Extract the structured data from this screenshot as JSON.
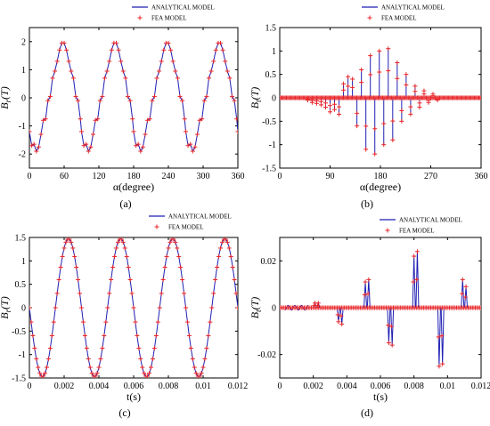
{
  "colors": {
    "analytical": "#1f1fb4",
    "fea": "#e8262a",
    "axis": "#000000",
    "background": "#ffffff"
  },
  "legend": {
    "analytical": "ANALYTICAL MODEL",
    "fea": "FEA MODEL"
  },
  "chart_data": [
    {
      "id": "a",
      "type": "line",
      "caption": "(a)",
      "xlabel": "α(degree)",
      "ylabel_main": "B",
      "ylabel_sub": "r",
      "ylabel_unit": "(T)",
      "xlim": [
        0,
        360
      ],
      "ylim": [
        -2.5,
        2.5
      ],
      "xticks": [
        0,
        60,
        120,
        180,
        240,
        300,
        360
      ],
      "xtick_labels": [
        "0",
        "60",
        "120",
        "180",
        "240",
        "300",
        "360"
      ],
      "yticks": [
        -2,
        -1,
        0,
        1,
        2
      ],
      "ytick_labels": [
        "-2",
        "-1",
        "0",
        "1",
        "2"
      ],
      "legend_position": "top-right",
      "series": [
        {
          "name": "ANALYTICAL MODEL",
          "style": "line",
          "period": 90,
          "x": [
            0,
            4,
            8,
            12,
            16,
            20,
            24,
            28,
            32,
            36,
            40,
            44,
            48,
            52,
            56,
            60,
            64,
            68,
            72,
            76,
            80,
            84,
            88
          ],
          "values": [
            -1.2,
            -1.7,
            -1.65,
            -1.9,
            -1.75,
            -1.3,
            -0.8,
            -0.75,
            -0.1,
            0.05,
            0.7,
            0.95,
            1.3,
            1.7,
            1.95,
            1.95,
            1.7,
            1.3,
            0.95,
            0.7,
            0.05,
            -0.1,
            -0.75
          ]
        },
        {
          "name": "FEA MODEL",
          "style": "marker",
          "period": 90,
          "x": [
            0,
            4,
            8,
            12,
            16,
            20,
            24,
            28,
            32,
            36,
            40,
            44,
            48,
            52,
            56,
            60,
            64,
            68,
            72,
            76,
            80,
            84,
            88
          ],
          "values": [
            -1.2,
            -1.7,
            -1.65,
            -1.9,
            -1.75,
            -1.3,
            -0.8,
            -0.75,
            -0.1,
            0.05,
            0.7,
            0.95,
            1.3,
            1.7,
            1.95,
            1.95,
            1.7,
            1.3,
            0.95,
            0.7,
            0.05,
            -0.1,
            -0.75
          ]
        }
      ]
    },
    {
      "id": "b",
      "type": "line",
      "caption": "(b)",
      "xlabel": "α(degree)",
      "ylabel_main": "B",
      "ylabel_sub": "t",
      "ylabel_unit": "(T)",
      "xlim": [
        0,
        360
      ],
      "ylim": [
        -1.5,
        1.5
      ],
      "xticks": [
        0,
        90,
        180,
        270,
        360
      ],
      "xtick_labels": [
        "0",
        "90",
        "180",
        "270",
        "360"
      ],
      "yticks": [
        -1.5,
        -1,
        -0.5,
        0,
        0.5,
        1,
        1.5
      ],
      "ytick_labels": [
        "-1.5",
        "-1",
        "-0.5",
        "0",
        "0.5",
        "1",
        "1.5"
      ],
      "legend_position": "top-right",
      "spikes": {
        "x": [
          50,
          58,
          66,
          74,
          82,
          90,
          98,
          106,
          114,
          122,
          130,
          138,
          146,
          154,
          162,
          170,
          178,
          186,
          194,
          202,
          210,
          218,
          226,
          234,
          242,
          250,
          258,
          266,
          274,
          282
        ],
        "values": [
          -0.05,
          -0.1,
          -0.12,
          -0.15,
          -0.2,
          -0.3,
          -0.25,
          -0.35,
          0.3,
          0.45,
          0.4,
          -0.6,
          0.6,
          -1.1,
          0.9,
          -1.2,
          1.0,
          -1.0,
          1.05,
          -0.9,
          0.75,
          -0.5,
          0.5,
          -0.35,
          0.25,
          -0.2,
          0.15,
          -0.1,
          0.08,
          -0.05
        ]
      },
      "series": [
        {
          "name": "ANALYTICAL MODEL",
          "style": "spikes"
        },
        {
          "name": "FEA MODEL",
          "style": "marker"
        }
      ]
    },
    {
      "id": "c",
      "type": "line",
      "caption": "(c)",
      "xlabel": "t(s)",
      "ylabel_main": "B",
      "ylabel_sub": "r",
      "ylabel_unit": "(T)",
      "xlim": [
        0,
        0.012
      ],
      "ylim": [
        -1.5,
        1.5
      ],
      "xticks": [
        0,
        0.002,
        0.004,
        0.006,
        0.008,
        0.01,
        0.012
      ],
      "xtick_labels": [
        "0",
        "0.002",
        "0.004",
        "0.006",
        "0.008",
        "0.01",
        "0.012"
      ],
      "yticks": [
        -1.5,
        -1,
        -0.5,
        0,
        0.5,
        1,
        1.5
      ],
      "ytick_labels": [
        "-1.5",
        "-1",
        "-0.5",
        "0",
        "0.5",
        "1",
        "1.5"
      ],
      "legend_position": "top-right",
      "sine": {
        "amplitude": 1.47,
        "period": 0.003,
        "phase_zero_value": 0.0,
        "starts_negative": true
      },
      "series": [
        {
          "name": "ANALYTICAL MODEL",
          "style": "line"
        },
        {
          "name": "FEA MODEL",
          "style": "marker"
        }
      ]
    },
    {
      "id": "d",
      "type": "line",
      "caption": "(d)",
      "xlabel": "t(s)",
      "ylabel_main": "B",
      "ylabel_sub": "t",
      "ylabel_unit": "(T)",
      "xlim": [
        0,
        0.012
      ],
      "ylim": [
        -0.03,
        0.03
      ],
      "xticks": [
        0,
        0.002,
        0.004,
        0.006,
        0.008,
        0.01,
        0.012
      ],
      "xtick_labels": [
        "0",
        "0.002",
        "0.004",
        "0.006",
        "0.008",
        "0.01",
        "0.012"
      ],
      "yticks": [
        -0.02,
        0,
        0.02
      ],
      "ytick_labels": [
        "-0.02",
        "0",
        "0.02"
      ],
      "legend_position": "top-right",
      "spikes": {
        "x": [
          0.0021,
          0.0023,
          0.0035,
          0.0037,
          0.0051,
          0.0053,
          0.0065,
          0.0067,
          0.008,
          0.0082,
          0.0095,
          0.0097,
          0.0109,
          0.0111
        ],
        "values": [
          0.002,
          0.002,
          -0.006,
          -0.007,
          0.011,
          0.012,
          -0.015,
          -0.016,
          0.022,
          0.024,
          -0.025,
          -0.024,
          0.012,
          0.009
        ]
      },
      "series": [
        {
          "name": "ANALYTICAL MODEL",
          "style": "spikes"
        },
        {
          "name": "FEA MODEL",
          "style": "marker"
        }
      ]
    }
  ]
}
